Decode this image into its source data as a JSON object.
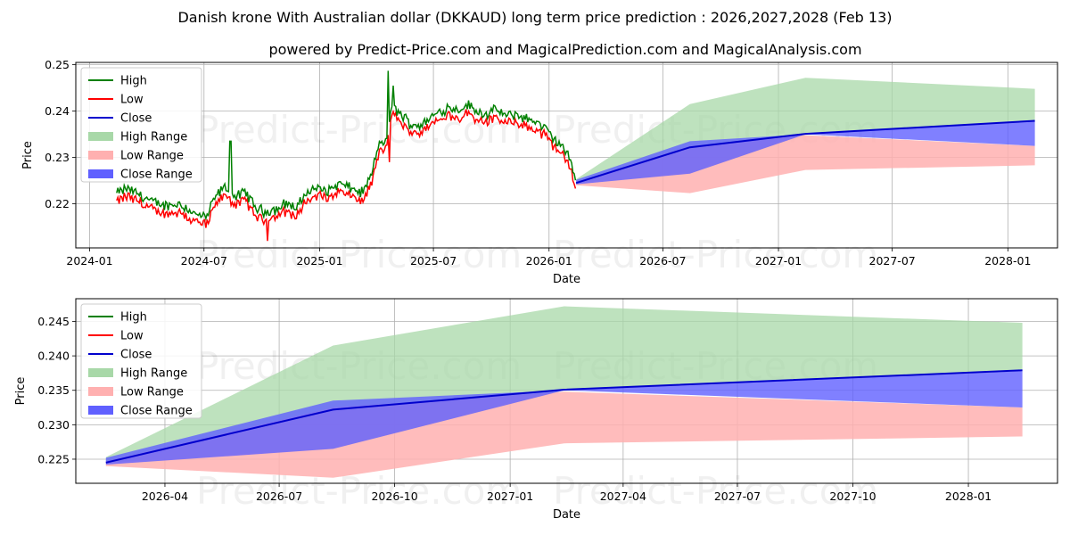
{
  "title": "Danish krone With Australian dollar (DKKAUD) long term price prediction : 2026,2027,2028 (Feb 13)",
  "subtitle": "powered by Predict-Price.com and MagicalPrediction.com and MagicalAnalysis.com",
  "watermark": "Predict-Price.com",
  "colors": {
    "high": "#008000",
    "low": "#ff0000",
    "close": "#0000cd",
    "high_range": "#a8d8a8",
    "low_range": "#ffb0b0",
    "close_range": "#6060ff",
    "grid": "#b0b0b0"
  },
  "chart_data": [
    {
      "type": "line",
      "panel": "top",
      "xlabel": "Date",
      "ylabel": "Price",
      "x_ticks": [
        "2024-01",
        "2024-07",
        "2025-01",
        "2025-07",
        "2026-01",
        "2026-07",
        "2027-01",
        "2027-07",
        "2028-01"
      ],
      "y_ticks": [
        "0.22",
        "0.23",
        "0.24",
        "0.25"
      ],
      "xlim": [
        "2023-12-10",
        "2028-03-20"
      ],
      "ylim": [
        0.2105,
        0.2505
      ],
      "legend": {
        "position": "top-left",
        "entries": [
          "High",
          "Low",
          "Close",
          "High Range",
          "Low Range",
          "Close Range"
        ]
      },
      "history_dates_start": "2024-02-13",
      "history_dates_end": "2026-02-13",
      "history_anchors": [
        [
          "2024-02-13",
          0.2214
        ],
        [
          "2024-03-01",
          0.2225
        ],
        [
          "2024-03-20",
          0.2212
        ],
        [
          "2024-04-10",
          0.2195
        ],
        [
          "2024-05-01",
          0.2188
        ],
        [
          "2024-05-25",
          0.2192
        ],
        [
          "2024-06-15",
          0.217
        ],
        [
          "2024-07-05",
          0.2162
        ],
        [
          "2024-07-20",
          0.221
        ],
        [
          "2024-08-05",
          0.2228
        ],
        [
          "2024-08-20",
          0.2205
        ],
        [
          "2024-09-05",
          0.2218
        ],
        [
          "2024-09-20",
          0.2185
        ],
        [
          "2024-10-05",
          0.2175
        ],
        [
          "2024-10-25",
          0.218
        ],
        [
          "2024-11-10",
          0.2195
        ],
        [
          "2024-11-25",
          0.218
        ],
        [
          "2024-12-10",
          0.2215
        ],
        [
          "2024-12-25",
          0.2225
        ],
        [
          "2025-01-15",
          0.222
        ],
        [
          "2025-02-01",
          0.2235
        ],
        [
          "2025-02-20",
          0.2225
        ],
        [
          "2025-03-10",
          0.2215
        ],
        [
          "2025-03-25",
          0.2255
        ],
        [
          "2025-04-05",
          0.232
        ],
        [
          "2025-04-18",
          0.233
        ],
        [
          "2025-04-25",
          0.2405
        ],
        [
          "2025-05-10",
          0.2385
        ],
        [
          "2025-05-25",
          0.2365
        ],
        [
          "2025-06-10",
          0.236
        ],
        [
          "2025-06-25",
          0.2375
        ],
        [
          "2025-07-10",
          0.239
        ],
        [
          "2025-07-25",
          0.24
        ],
        [
          "2025-08-10",
          0.2395
        ],
        [
          "2025-08-25",
          0.2405
        ],
        [
          "2025-09-10",
          0.239
        ],
        [
          "2025-09-25",
          0.2385
        ],
        [
          "2025-10-10",
          0.2395
        ],
        [
          "2025-10-25",
          0.238
        ],
        [
          "2025-11-10",
          0.2385
        ],
        [
          "2025-11-25",
          0.2375
        ],
        [
          "2025-12-10",
          0.237
        ],
        [
          "2025-12-25",
          0.2355
        ],
        [
          "2026-01-10",
          0.233
        ],
        [
          "2026-01-25",
          0.231
        ],
        [
          "2026-02-05",
          0.228
        ],
        [
          "2026-02-13",
          0.2245
        ]
      ],
      "high_spikes": [
        [
          "2024-08-12",
          0.2335
        ],
        [
          "2025-04-20",
          0.2487
        ],
        [
          "2025-04-28",
          0.2455
        ]
      ],
      "low_dips": [
        [
          "2024-10-10",
          0.212
        ],
        [
          "2025-04-22",
          0.229
        ]
      ]
    },
    {
      "type": "area",
      "panel": "bottom",
      "xlabel": "Date",
      "ylabel": "Price",
      "x_ticks": [
        "2026-04",
        "2026-07",
        "2026-10",
        "2027-01",
        "2027-04",
        "2027-07",
        "2027-10",
        "2028-01"
      ],
      "y_ticks": [
        "0.225",
        "0.230",
        "0.235",
        "0.240",
        "0.245"
      ],
      "xlim": [
        "2026-01-20",
        "2028-03-12"
      ],
      "ylim": [
        0.2215,
        0.2483
      ],
      "legend": {
        "position": "top-left",
        "entries": [
          "High",
          "Low",
          "Close",
          "High Range",
          "Low Range",
          "Close Range"
        ]
      },
      "forecast_dates": [
        "2026-02-13",
        "2026-08-13",
        "2027-02-13",
        "2028-02-13"
      ],
      "high_range": {
        "upper": [
          0.2253,
          0.2415,
          0.2472,
          0.2448
        ],
        "lower": [
          0.2245,
          0.2265,
          0.235,
          0.2378
        ]
      },
      "low_range": {
        "upper": [
          0.2247,
          0.2325,
          0.2348,
          0.2325
        ],
        "lower": [
          0.224,
          0.2223,
          0.2273,
          0.2283
        ]
      },
      "close_range": {
        "upper": [
          0.2252,
          0.2335,
          0.235,
          0.2378
        ],
        "lower": [
          0.2242,
          0.2265,
          0.235,
          0.2325
        ]
      },
      "close": [
        0.2245,
        0.2322,
        0.2351,
        0.2379
      ]
    }
  ]
}
